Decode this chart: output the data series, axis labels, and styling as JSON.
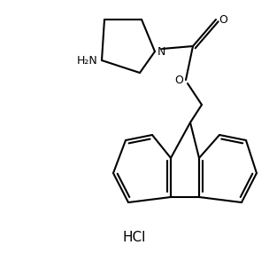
{
  "background_color": "#ffffff",
  "line_color": "#000000",
  "line_width": 1.5,
  "figsize": [
    3.04,
    2.85
  ],
  "dpi": 100,
  "hcl_label": "HCl",
  "o_label": "O",
  "n_label": "N",
  "h2n_label": "H₂N"
}
